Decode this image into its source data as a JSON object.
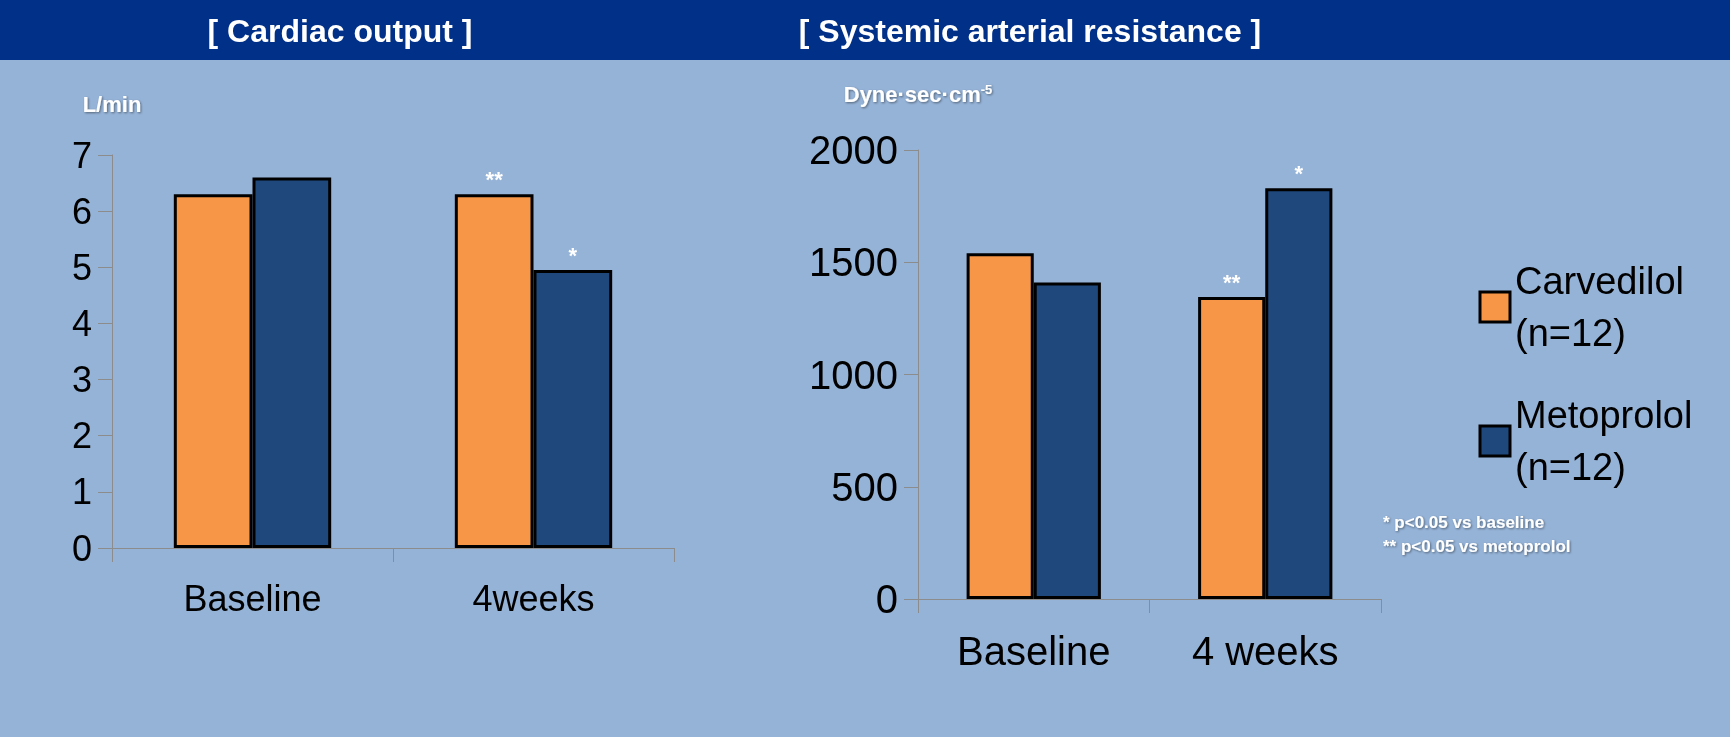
{
  "chart_data": [
    {
      "type": "bar",
      "title": "[ Cardiac output ]",
      "ylabel": "L/min",
      "categories": [
        "Baseline",
        "4weeks"
      ],
      "series": [
        {
          "color": "#f79646",
          "values": [
            6.3,
            6.3
          ]
        },
        {
          "color": "#1f497d",
          "values": [
            6.6,
            4.95
          ]
        }
      ],
      "ylim": [
        0,
        7
      ],
      "yticks": [
        0,
        1,
        2,
        3,
        4,
        5,
        6,
        7
      ],
      "grid": false,
      "legend": false,
      "annotations": [
        {
          "text": "**",
          "x": "4weeks",
          "y": 6.3
        },
        {
          "text": "*",
          "x": "4weeks",
          "y": 4.95
        }
      ]
    },
    {
      "type": "bar",
      "title": "[ Systemic arterial resistance ]",
      "ylabel": "Dyne·sec·cm$^{-5}$",
      "categories": [
        "Baseline",
        "4 weeks"
      ],
      "series": [
        {
          "name": "Carvedilol (n=12)",
          "color": "#f79646",
          "values": [
            1540,
            1345
          ]
        },
        {
          "name": "Metoprolol (n=12)",
          "color": "#1f497d",
          "values": [
            1410,
            1830
          ]
        }
      ],
      "ylim": [
        0,
        2000
      ],
      "yticks": [
        0,
        500,
        1000,
        1500,
        2000
      ],
      "grid": false,
      "legend": "right",
      "annotations": [
        {
          "text": "**",
          "x": "4 weeks",
          "y": 1345
        },
        {
          "text": "*",
          "x": "4 weeks",
          "y": 1830
        },
        "* p<0.05 vs baseline",
        "** p<0.05 vs metoprolol"
      ]
    }
  ]
}
